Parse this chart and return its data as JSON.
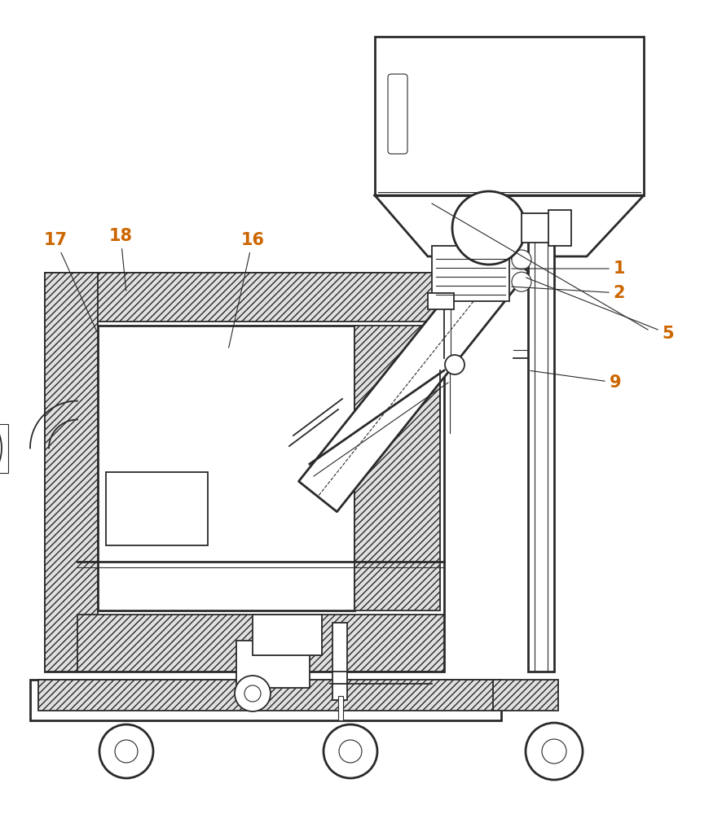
{
  "bg_color": "#ffffff",
  "line_color": "#2a2a2a",
  "label_color": "#cc6600",
  "label_fontsize": 15,
  "hatch_density": "////",
  "hatch_color": "#555555"
}
